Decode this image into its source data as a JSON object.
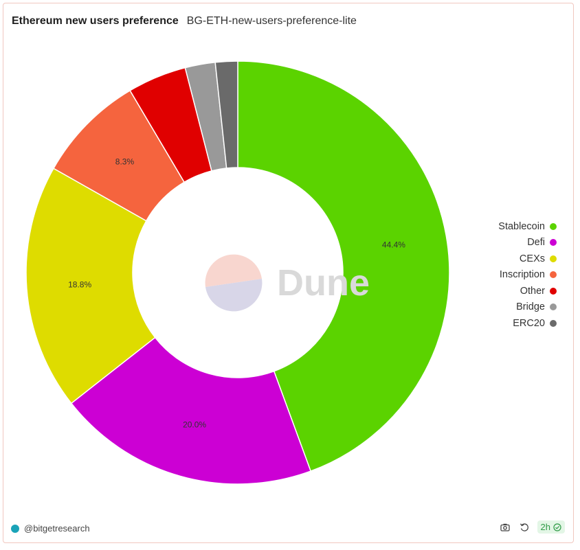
{
  "header": {
    "title": "Ethereum new users preference",
    "subtitle": "BG-ETH-new-users-preference-lite"
  },
  "watermark": {
    "text": "Dune"
  },
  "chart_data": {
    "type": "pie",
    "title": "Ethereum new users preference",
    "donut": true,
    "legend_position": "right",
    "categories": [
      "Stablecoin",
      "Defi",
      "CEXs",
      "Inscription",
      "Other",
      "Bridge",
      "ERC20"
    ],
    "values": [
      44.4,
      20.0,
      18.8,
      8.3,
      4.5,
      2.3,
      1.7
    ],
    "data_labels": [
      "44.4%",
      "20.0%",
      "18.8%",
      "8.3%",
      "",
      "",
      ""
    ],
    "colors": [
      "#5bd300",
      "#cc00d4",
      "#dedc00",
      "#f5643e",
      "#e00000",
      "#999999",
      "#6a6a6a"
    ]
  },
  "footer": {
    "handle": "@bitgetresearch",
    "refresh_age": "2h",
    "icons": [
      "camera-icon",
      "refresh-icon",
      "check-circle-icon"
    ]
  }
}
